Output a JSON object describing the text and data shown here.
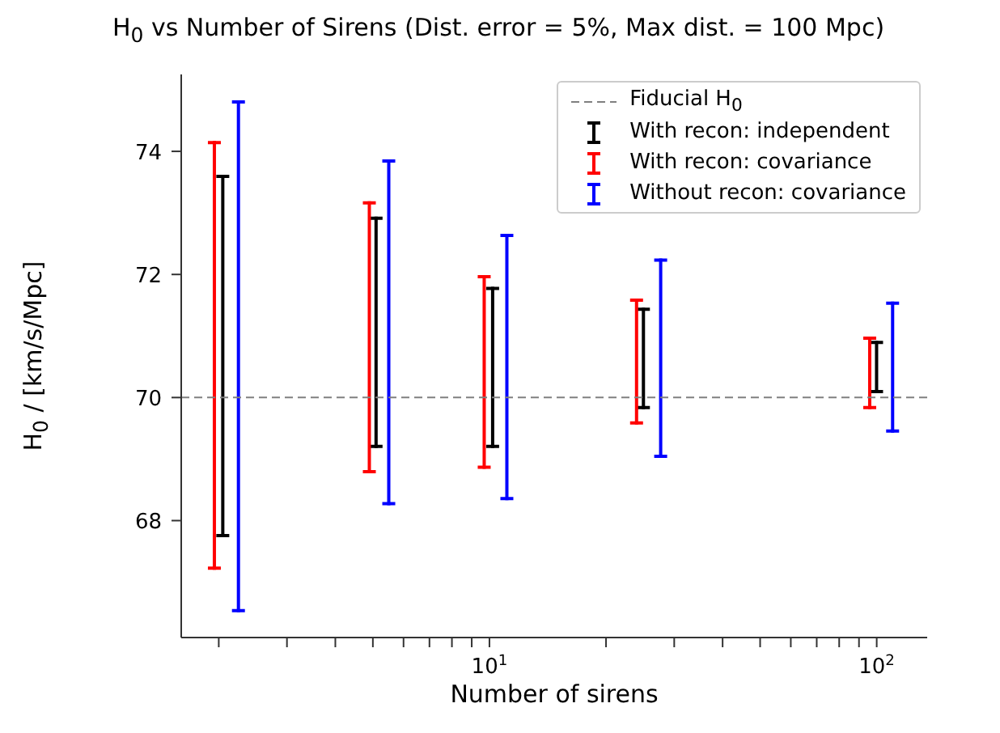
{
  "chart_data": {
    "type": "bar",
    "title": "H$_{0}$ vs Number of Sirens (Dist. error = 5%, Max dist. = 100 Mpc)",
    "xlabel": "Number of sirens",
    "ylabel": "H$_{0}$ / [km/s/Mpc]",
    "log": "x",
    "xlim": [
      1.6,
      135
    ],
    "xticks": [
      {
        "value": 2,
        "label": null
      },
      {
        "value": 3,
        "label": null
      },
      {
        "value": 4,
        "label": null
      },
      {
        "value": 5,
        "label": null
      },
      {
        "value": 6,
        "label": null
      },
      {
        "value": 7,
        "label": null
      },
      {
        "value": 8,
        "label": null
      },
      {
        "value": 9,
        "label": null
      },
      {
        "value": 10,
        "label": "10$^{1}$"
      },
      {
        "value": 20,
        "label": null
      },
      {
        "value": 30,
        "label": null
      },
      {
        "value": 40,
        "label": null
      },
      {
        "value": 50,
        "label": null
      },
      {
        "value": 60,
        "label": null
      },
      {
        "value": 70,
        "label": null
      },
      {
        "value": 80,
        "label": null
      },
      {
        "value": 90,
        "label": null
      },
      {
        "value": 100,
        "label": "10$^{2}$"
      }
    ],
    "ylim": [
      66.1,
      75.25
    ],
    "yticks": [
      68,
      70,
      72,
      74
    ],
    "grid": false,
    "legend": "top right",
    "ref_lines": [
      {
        "axis": "y",
        "value": 70,
        "label": "Fiducial H$_{0}$",
        "color": "#808080",
        "line_style": "dashed"
      }
    ],
    "series": [
      {
        "name": "With recon: independent",
        "color": "#000000",
        "x": [
          2.05,
          5.1,
          10.2,
          25,
          100
        ],
        "base": [
          67.73,
          69.18,
          69.18,
          69.81,
          70.07
        ],
        "values": [
          5.89,
          3.76,
          2.62,
          1.65,
          0.85
        ]
      },
      {
        "name": "With recon: covariance",
        "color": "#ff0000",
        "x": [
          1.95,
          4.9,
          9.7,
          24,
          96
        ],
        "base": [
          67.2,
          68.77,
          68.84,
          69.56,
          69.81
        ],
        "values": [
          6.97,
          4.42,
          3.15,
          2.05,
          1.18
        ]
      },
      {
        "name": "Without recon: covariance",
        "color": "#0000ff",
        "x": [
          2.25,
          5.5,
          11.1,
          27.7,
          110
        ],
        "base": [
          66.51,
          68.25,
          68.33,
          69.02,
          69.43
        ],
        "values": [
          8.32,
          5.62,
          4.33,
          3.24,
          2.13
        ]
      }
    ]
  }
}
